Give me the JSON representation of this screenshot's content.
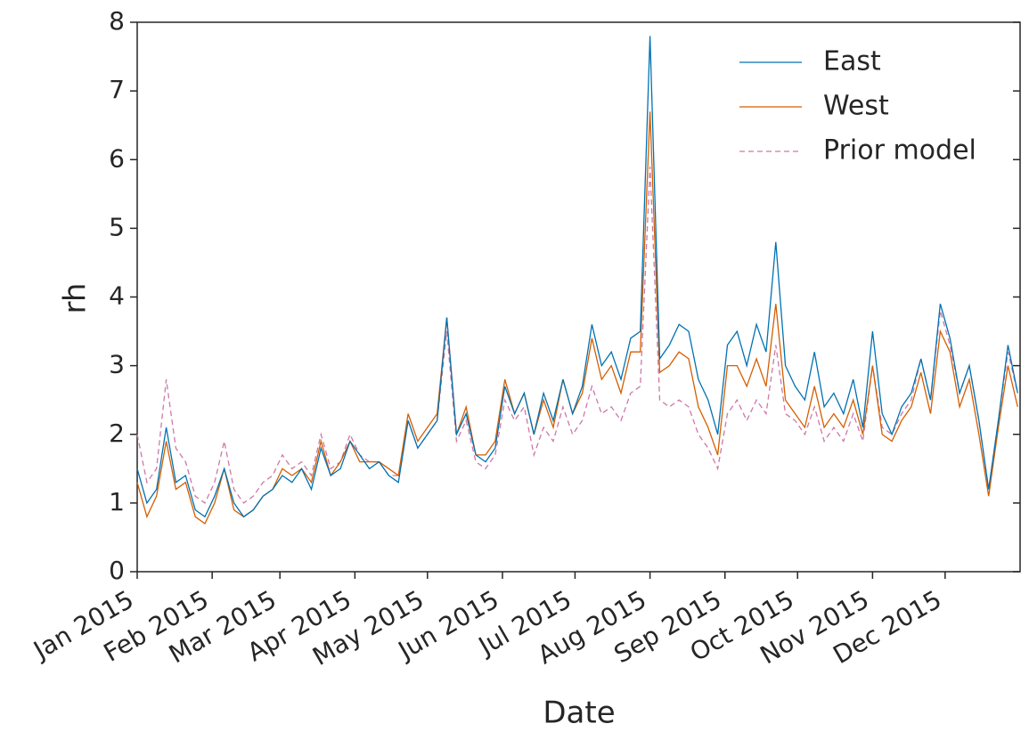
{
  "chart_data": {
    "type": "line",
    "x_label": "Date",
    "y_label": "rh",
    "x": [
      0,
      4,
      8,
      12,
      16,
      20,
      24,
      28,
      32,
      36,
      40,
      44,
      48,
      52,
      56,
      60,
      64,
      68,
      72,
      76,
      80,
      84,
      88,
      92,
      96,
      100,
      104,
      108,
      112,
      116,
      120,
      124,
      128,
      132,
      136,
      140,
      144,
      148,
      152,
      156,
      160,
      164,
      168,
      172,
      176,
      180,
      184,
      188,
      192,
      196,
      200,
      204,
      208,
      212,
      216,
      220,
      224,
      228,
      232,
      236,
      240,
      244,
      248,
      252,
      256,
      260,
      264,
      268,
      272,
      276,
      280,
      284,
      288,
      292,
      296,
      300,
      304,
      308,
      312,
      316,
      320,
      324,
      328,
      332,
      336,
      340,
      344,
      348,
      352,
      356,
      360,
      364
    ],
    "series": [
      {
        "name": "East",
        "color": "#0072b2",
        "linestyle": "solid",
        "values": [
          1.5,
          1.0,
          1.2,
          2.1,
          1.3,
          1.4,
          0.9,
          0.8,
          1.1,
          1.5,
          1.0,
          0.8,
          0.9,
          1.1,
          1.2,
          1.4,
          1.3,
          1.5,
          1.2,
          1.8,
          1.4,
          1.5,
          1.9,
          1.7,
          1.5,
          1.6,
          1.4,
          1.3,
          2.2,
          1.8,
          2.0,
          2.2,
          3.7,
          2.0,
          2.3,
          1.7,
          1.6,
          1.8,
          2.7,
          2.3,
          2.6,
          2.0,
          2.6,
          2.2,
          2.8,
          2.3,
          2.7,
          3.6,
          3.0,
          3.2,
          2.8,
          3.4,
          3.5,
          7.8,
          3.1,
          3.3,
          3.6,
          3.5,
          2.8,
          2.5,
          2.0,
          3.3,
          3.5,
          3.0,
          3.6,
          3.2,
          4.8,
          3.0,
          2.7,
          2.5,
          3.2,
          2.4,
          2.6,
          2.3,
          2.8,
          2.1,
          3.5,
          2.3,
          2.0,
          2.4,
          2.6,
          3.1,
          2.5,
          3.9,
          3.4,
          2.6,
          3.0,
          2.2,
          1.2,
          2.2,
          3.3,
          2.6
        ]
      },
      {
        "name": "West",
        "color": "#d55e00",
        "linestyle": "solid",
        "values": [
          1.3,
          0.8,
          1.1,
          1.9,
          1.2,
          1.3,
          0.8,
          0.7,
          1.0,
          1.5,
          0.9,
          0.8,
          0.9,
          1.1,
          1.2,
          1.5,
          1.4,
          1.5,
          1.3,
          1.9,
          1.4,
          1.6,
          1.9,
          1.6,
          1.6,
          1.6,
          1.5,
          1.4,
          2.3,
          1.9,
          2.1,
          2.3,
          3.7,
          2.0,
          2.4,
          1.7,
          1.7,
          1.9,
          2.8,
          2.3,
          2.6,
          2.0,
          2.5,
          2.1,
          2.8,
          2.3,
          2.6,
          3.4,
          2.8,
          3.0,
          2.6,
          3.2,
          3.2,
          6.7,
          2.9,
          3.0,
          3.2,
          3.1,
          2.4,
          2.1,
          1.7,
          3.0,
          3.0,
          2.7,
          3.1,
          2.7,
          3.9,
          2.5,
          2.3,
          2.1,
          2.7,
          2.1,
          2.3,
          2.1,
          2.5,
          2.0,
          3.0,
          2.0,
          1.9,
          2.2,
          2.4,
          2.9,
          2.3,
          3.5,
          3.2,
          2.4,
          2.8,
          2.0,
          1.1,
          2.1,
          3.0,
          2.4
        ]
      },
      {
        "name": "Prior model",
        "color": "#cc79a7",
        "linestyle": "dashed",
        "values": [
          2.0,
          1.3,
          1.5,
          2.8,
          1.8,
          1.6,
          1.1,
          1.0,
          1.3,
          1.9,
          1.2,
          1.0,
          1.1,
          1.3,
          1.4,
          1.7,
          1.5,
          1.6,
          1.4,
          2.0,
          1.5,
          1.6,
          2.0,
          1.7,
          1.6,
          1.6,
          1.4,
          1.4,
          2.2,
          1.8,
          2.0,
          2.2,
          3.5,
          1.9,
          2.2,
          1.6,
          1.5,
          1.7,
          2.5,
          2.2,
          2.4,
          1.7,
          2.1,
          1.9,
          2.4,
          2.0,
          2.2,
          2.7,
          2.3,
          2.4,
          2.2,
          2.6,
          2.7,
          5.9,
          2.5,
          2.4,
          2.5,
          2.4,
          2.0,
          1.8,
          1.5,
          2.3,
          2.5,
          2.2,
          2.5,
          2.3,
          3.3,
          2.3,
          2.2,
          2.0,
          2.4,
          1.9,
          2.1,
          1.9,
          2.3,
          1.9,
          3.0,
          2.1,
          2.0,
          2.3,
          2.5,
          3.1,
          2.5,
          3.8,
          3.3,
          2.6,
          3.0,
          2.2,
          1.2,
          2.2,
          3.2,
          2.6
        ]
      }
    ],
    "xlim": [
      0,
      365
    ],
    "xticks": [
      {
        "value": 0,
        "label": "Jan 2015"
      },
      {
        "value": 31,
        "label": "Feb 2015"
      },
      {
        "value": 59,
        "label": "Mar 2015"
      },
      {
        "value": 90,
        "label": "Apr 2015"
      },
      {
        "value": 120,
        "label": "May 2015"
      },
      {
        "value": 151,
        "label": "Jun 2015"
      },
      {
        "value": 181,
        "label": "Jul 2015"
      },
      {
        "value": 212,
        "label": "Aug 2015"
      },
      {
        "value": 243,
        "label": "Sep 2015"
      },
      {
        "value": 273,
        "label": "Oct 2015"
      },
      {
        "value": 304,
        "label": "Nov 2015"
      },
      {
        "value": 334,
        "label": "Dec 2015"
      }
    ],
    "ylim": [
      0,
      8
    ],
    "yticks": [
      0,
      1,
      2,
      3,
      4,
      5,
      6,
      7,
      8
    ],
    "legend": "upper right"
  }
}
